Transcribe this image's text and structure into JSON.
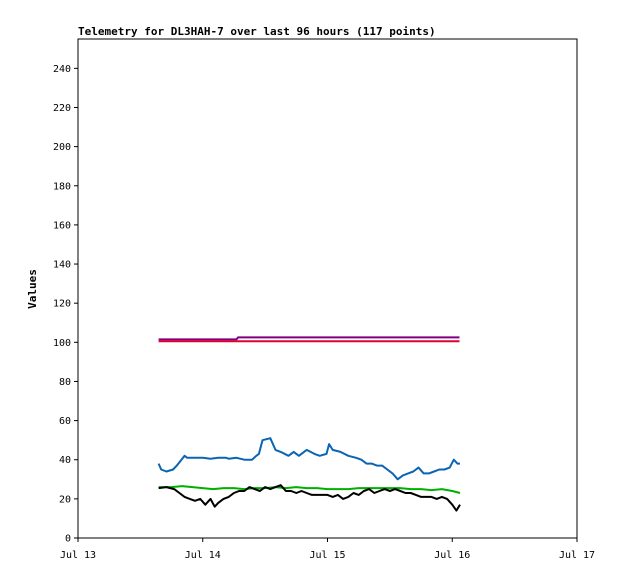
{
  "chart_data": {
    "type": "line",
    "title": "Telemetry for DL3HAH-7 over last 96 hours (117 points)",
    "xlabel": "",
    "ylabel": "Values",
    "ylim": [
      0,
      255
    ],
    "yticks": [
      0,
      20,
      40,
      60,
      80,
      100,
      120,
      140,
      160,
      180,
      200,
      220,
      240
    ],
    "xlim": [
      0,
      96
    ],
    "xticks": [
      {
        "x": 0,
        "label": "Jul 13"
      },
      {
        "x": 24,
        "label": "Jul 14"
      },
      {
        "x": 48,
        "label": "Jul 15"
      },
      {
        "x": 72,
        "label": "Jul 16"
      },
      {
        "x": 96,
        "label": "Jul 17"
      }
    ],
    "grid": false,
    "legend": "none",
    "series": [
      {
        "color": "#800080",
        "x": [
          15.5,
          30.5,
          30.8,
          73.4
        ],
        "y": [
          101.5,
          101.5,
          102.5,
          102.5
        ]
      },
      {
        "color": "#dd0033",
        "x": [
          15.5,
          73.4
        ],
        "y": [
          100.5,
          100.5
        ]
      },
      {
        "color": "#0a64b4",
        "x": [
          15.5,
          16.0,
          17.0,
          18.3,
          19.0,
          20.5,
          21.0,
          22.0,
          24.0,
          25.5,
          27.0,
          28.5,
          29.0,
          30.5,
          32.0,
          33.5,
          34.3,
          34.8,
          35.5,
          37.0,
          38.0,
          39.0,
          40.5,
          41.5,
          42.5,
          44.0,
          45.5,
          46.5,
          47.8,
          48.3,
          49.0,
          50.5,
          52.0,
          53.5,
          54.5,
          55.5,
          56.5,
          57.5,
          58.5,
          59.5,
          60.5,
          61.5,
          62.5,
          63.5,
          64.5,
          65.5,
          66.5,
          67.5,
          68.5,
          69.5,
          70.5,
          71.5,
          72.3,
          73.0,
          73.5
        ],
        "y": [
          38,
          35,
          34,
          35,
          37,
          42,
          41,
          41,
          41,
          40.5,
          41,
          41,
          40.5,
          41,
          40,
          40,
          42,
          43,
          50,
          51,
          45,
          44,
          42,
          44,
          42,
          45,
          43,
          42,
          43,
          48,
          45,
          44,
          42,
          41,
          40,
          38,
          38,
          37,
          37,
          35,
          33,
          30,
          32,
          33,
          34,
          36,
          33,
          33,
          34,
          35,
          35,
          36,
          40,
          38,
          38
        ]
      },
      {
        "color": "#00b000",
        "x": [
          15.5,
          18.0,
          20.0,
          22.0,
          24.0,
          26.0,
          28.0,
          30.0,
          32.0,
          34.0,
          36.0,
          38.0,
          40.0,
          42.0,
          44.0,
          46.0,
          48.0,
          50.0,
          52.0,
          54.0,
          56.0,
          58.0,
          60.0,
          62.0,
          64.0,
          66.0,
          68.0,
          70.0,
          72.0,
          73.5
        ],
        "y": [
          26,
          26,
          26.5,
          26,
          25.5,
          25,
          25.5,
          25.5,
          25,
          25.5,
          25.5,
          26,
          25.5,
          26,
          25.5,
          25.5,
          25,
          25,
          25,
          25.5,
          25.5,
          25.5,
          25.5,
          25.5,
          25,
          25,
          24.5,
          25,
          24,
          23
        ]
      },
      {
        "color": "#000000",
        "x": [
          15.5,
          17.0,
          18.5,
          19.5,
          20.5,
          21.5,
          22.5,
          23.5,
          24.5,
          25.5,
          26.3,
          27.0,
          28.0,
          29.0,
          30.0,
          31.0,
          32.0,
          33.0,
          34.0,
          35.0,
          36.0,
          37.0,
          38.0,
          39.0,
          40.0,
          41.0,
          42.0,
          43.0,
          44.0,
          45.0,
          46.0,
          47.0,
          48.0,
          49.0,
          50.0,
          51.0,
          52.0,
          53.0,
          54.0,
          55.0,
          56.0,
          57.0,
          58.0,
          59.0,
          60.0,
          61.0,
          62.0,
          63.0,
          64.0,
          65.0,
          66.0,
          67.0,
          68.0,
          69.0,
          70.0,
          71.0,
          72.0,
          72.8,
          73.5
        ],
        "y": [
          25.5,
          26,
          25,
          23,
          21,
          20,
          19,
          20,
          17,
          20,
          16,
          18,
          20,
          21,
          23,
          24,
          24,
          26,
          25,
          24,
          26,
          25,
          26,
          27,
          24,
          24,
          23,
          24,
          23,
          22,
          22,
          22,
          22,
          21,
          22,
          20,
          21,
          23,
          22,
          24,
          25,
          23,
          24,
          25,
          24,
          25,
          24,
          23,
          23,
          22,
          21,
          21,
          21,
          20,
          21,
          20,
          17,
          14,
          17
        ]
      }
    ]
  }
}
